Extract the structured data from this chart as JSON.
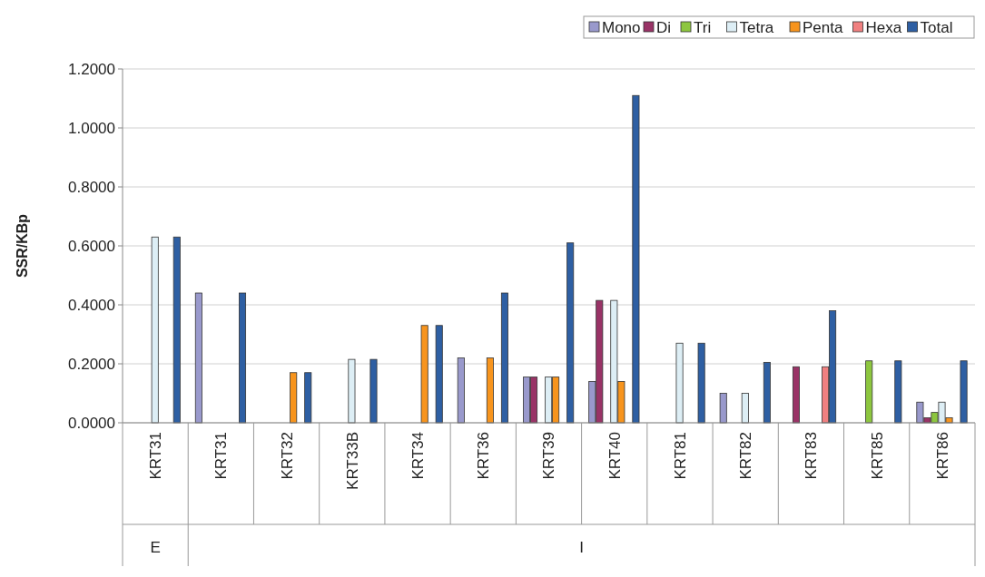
{
  "chart_data": {
    "type": "bar",
    "ylabel": "SSR/KBp",
    "categories": [
      "KRT31",
      "KRT31",
      "KRT32",
      "KRT33B",
      "KRT34",
      "KRT36",
      "KRT39",
      "KRT40",
      "KRT81",
      "KRT82",
      "KRT83",
      "KRT85",
      "KRT86"
    ],
    "series": [
      {
        "name": "Mono",
        "color": "#9999cc",
        "values": [
          null,
          0.44,
          null,
          null,
          null,
          0.22,
          0.155,
          0.14,
          null,
          0.1,
          null,
          null,
          0.07
        ]
      },
      {
        "name": "Di",
        "color": "#993366",
        "values": [
          null,
          null,
          null,
          null,
          null,
          null,
          0.155,
          0.415,
          null,
          null,
          0.19,
          null,
          0.017
        ]
      },
      {
        "name": "Tri",
        "color": "#8dc63f",
        "values": [
          null,
          null,
          null,
          null,
          null,
          null,
          null,
          null,
          null,
          null,
          null,
          0.21,
          0.035
        ]
      },
      {
        "name": "Tetra",
        "color": "#ddeef5",
        "values": [
          0.63,
          null,
          null,
          0.215,
          null,
          null,
          0.155,
          0.415,
          0.27,
          0.1,
          null,
          null,
          0.07
        ]
      },
      {
        "name": "Penta",
        "color": "#f7941d",
        "values": [
          null,
          null,
          0.17,
          null,
          0.33,
          0.22,
          0.155,
          0.14,
          null,
          null,
          null,
          null,
          0.017
        ]
      },
      {
        "name": "Hexa",
        "color": "#f08080",
        "values": [
          null,
          null,
          null,
          null,
          null,
          null,
          null,
          null,
          null,
          null,
          0.19,
          null,
          null
        ]
      },
      {
        "name": "Total",
        "color": "#2e5fa3",
        "values": [
          0.63,
          0.44,
          0.17,
          0.215,
          0.33,
          0.44,
          0.61,
          1.11,
          0.27,
          0.205,
          0.38,
          0.21,
          0.21
        ]
      }
    ],
    "ylim": [
      0,
      1.2
    ],
    "yticks": [
      {
        "value": 0,
        "label": "0.0000"
      },
      {
        "value": 0.2,
        "label": "0.2000"
      },
      {
        "value": 0.4,
        "label": "0.4000"
      },
      {
        "value": 0.6,
        "label": "0.6000"
      },
      {
        "value": 0.8,
        "label": "0.8000"
      },
      {
        "value": 1,
        "label": "1.0000"
      },
      {
        "value": 1.2,
        "label": "1.2000"
      }
    ],
    "grid": "y",
    "legend": "top right",
    "annotations": [
      "E",
      "I"
    ]
  }
}
